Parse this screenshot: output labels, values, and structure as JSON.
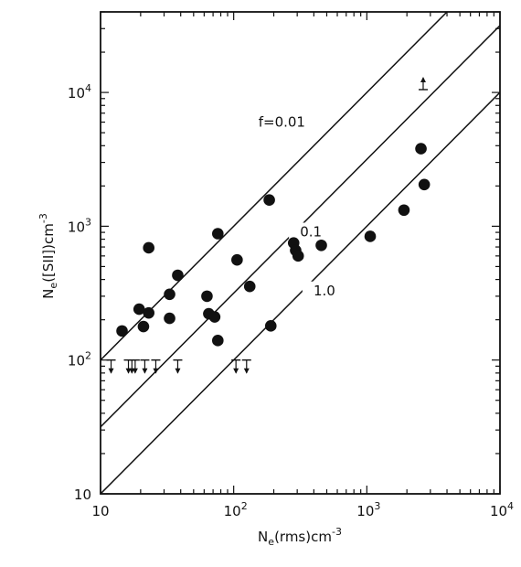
{
  "chart_data": {
    "type": "scatter",
    "xscale": "log",
    "yscale": "log",
    "xlim": [
      10,
      10000
    ],
    "ylim": [
      10,
      40000
    ],
    "xlabel": {
      "main": "N",
      "sub": "e",
      "rest": "(rms)cm",
      "sup": "-3"
    },
    "ylabel": {
      "main": "N",
      "sub": "e",
      "rest": "([SII])cm",
      "sup": "-3"
    },
    "xticks": [
      {
        "value": 10,
        "base": "10",
        "exp": ""
      },
      {
        "value": 100,
        "base": "10",
        "exp": "2"
      },
      {
        "value": 1000,
        "base": "10",
        "exp": "3"
      },
      {
        "value": 10000,
        "base": "10",
        "exp": "4"
      }
    ],
    "yticks": [
      {
        "value": 10,
        "base": "10",
        "exp": ""
      },
      {
        "value": 100,
        "base": "10",
        "exp": "2"
      },
      {
        "value": 1000,
        "base": "10",
        "exp": "3"
      },
      {
        "value": 10000,
        "base": "10",
        "exp": "4"
      }
    ],
    "lines": [
      {
        "label": "f=0.01",
        "f": 0.01,
        "label_at": [
          230,
          5800
        ]
      },
      {
        "label": "0.1",
        "f": 0.1,
        "label_at": [
          380,
          880
        ]
      },
      {
        "label": "1.0",
        "f": 1.0,
        "label_at": [
          480,
          320
        ]
      }
    ],
    "points": [
      {
        "x": 14.5,
        "y": 165
      },
      {
        "x": 19.5,
        "y": 240
      },
      {
        "x": 21,
        "y": 178
      },
      {
        "x": 23,
        "y": 225
      },
      {
        "x": 23,
        "y": 690
      },
      {
        "x": 38,
        "y": 430
      },
      {
        "x": 33,
        "y": 310
      },
      {
        "x": 33,
        "y": 205
      },
      {
        "x": 63,
        "y": 300
      },
      {
        "x": 65,
        "y": 222
      },
      {
        "x": 72,
        "y": 210
      },
      {
        "x": 76,
        "y": 140
      },
      {
        "x": 76,
        "y": 880
      },
      {
        "x": 106,
        "y": 560
      },
      {
        "x": 132,
        "y": 355
      },
      {
        "x": 185,
        "y": 1570
      },
      {
        "x": 190,
        "y": 180
      },
      {
        "x": 282,
        "y": 750
      },
      {
        "x": 292,
        "y": 660
      },
      {
        "x": 305,
        "y": 600
      },
      {
        "x": 455,
        "y": 720
      },
      {
        "x": 1060,
        "y": 840
      },
      {
        "x": 1900,
        "y": 1320
      },
      {
        "x": 2550,
        "y": 3800
      },
      {
        "x": 2700,
        "y": 2050
      }
    ],
    "upper_limits": [
      {
        "x": 12,
        "y": 100
      },
      {
        "x": 16.2,
        "y": 100
      },
      {
        "x": 17.2,
        "y": 100
      },
      {
        "x": 18.2,
        "y": 100
      },
      {
        "x": 21.5,
        "y": 100
      },
      {
        "x": 26,
        "y": 100
      },
      {
        "x": 38,
        "y": 100
      },
      {
        "x": 104,
        "y": 100
      },
      {
        "x": 125,
        "y": 100
      }
    ],
    "lower_limits": [
      {
        "x": 2650,
        "y": 10500
      }
    ]
  }
}
